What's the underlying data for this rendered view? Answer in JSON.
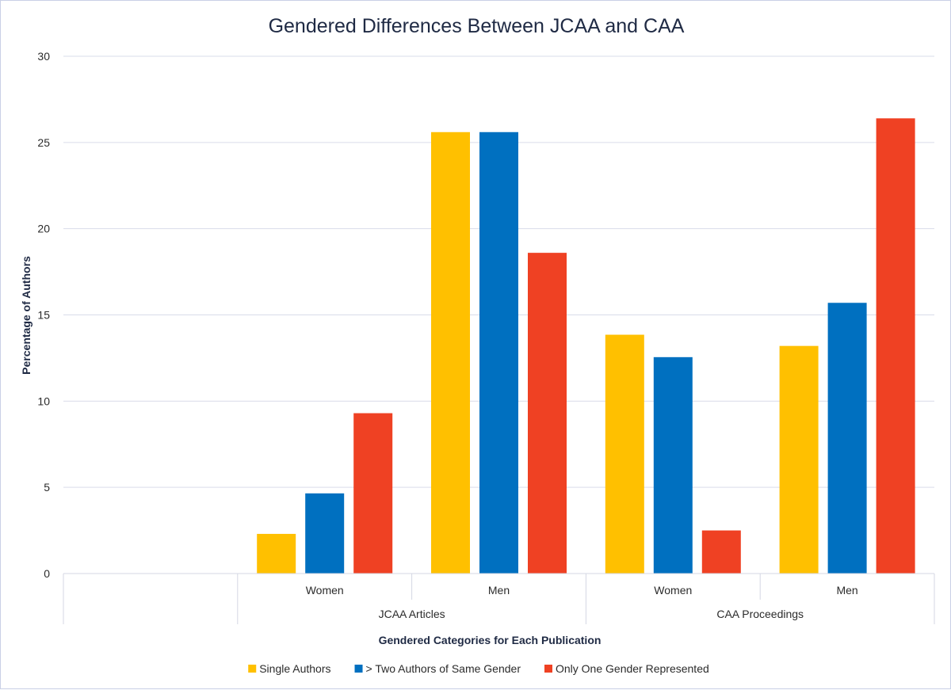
{
  "chart_data": {
    "type": "bar",
    "title": "Gendered Differences Between JCAA and CAA",
    "xlabel": "Gendered Categories for Each Publication",
    "ylabel": "Percentage of Authors",
    "ylim": [
      0,
      30
    ],
    "yticks": [
      0,
      5,
      10,
      15,
      20,
      25,
      30
    ],
    "grid": true,
    "legend_position": "bottom",
    "groups": [
      {
        "label": "",
        "categories": [
          ""
        ]
      },
      {
        "label": "JCAA Articles",
        "categories": [
          "Women",
          "Men"
        ]
      },
      {
        "label": "CAA Proceedings",
        "categories": [
          "Women",
          "Men"
        ]
      }
    ],
    "series": [
      {
        "name": "Single Authors",
        "color": "#FFC000",
        "values": [
          null,
          2.3,
          25.6,
          13.85,
          13.2
        ]
      },
      {
        "name": "> Two Authors of Same Gender",
        "color": "#0070C0",
        "values": [
          null,
          4.65,
          25.6,
          12.55,
          15.7
        ]
      },
      {
        "name": "Only One Gender Represented",
        "color": "#EF4123",
        "values": [
          null,
          9.3,
          18.6,
          2.5,
          26.4
        ]
      }
    ]
  }
}
